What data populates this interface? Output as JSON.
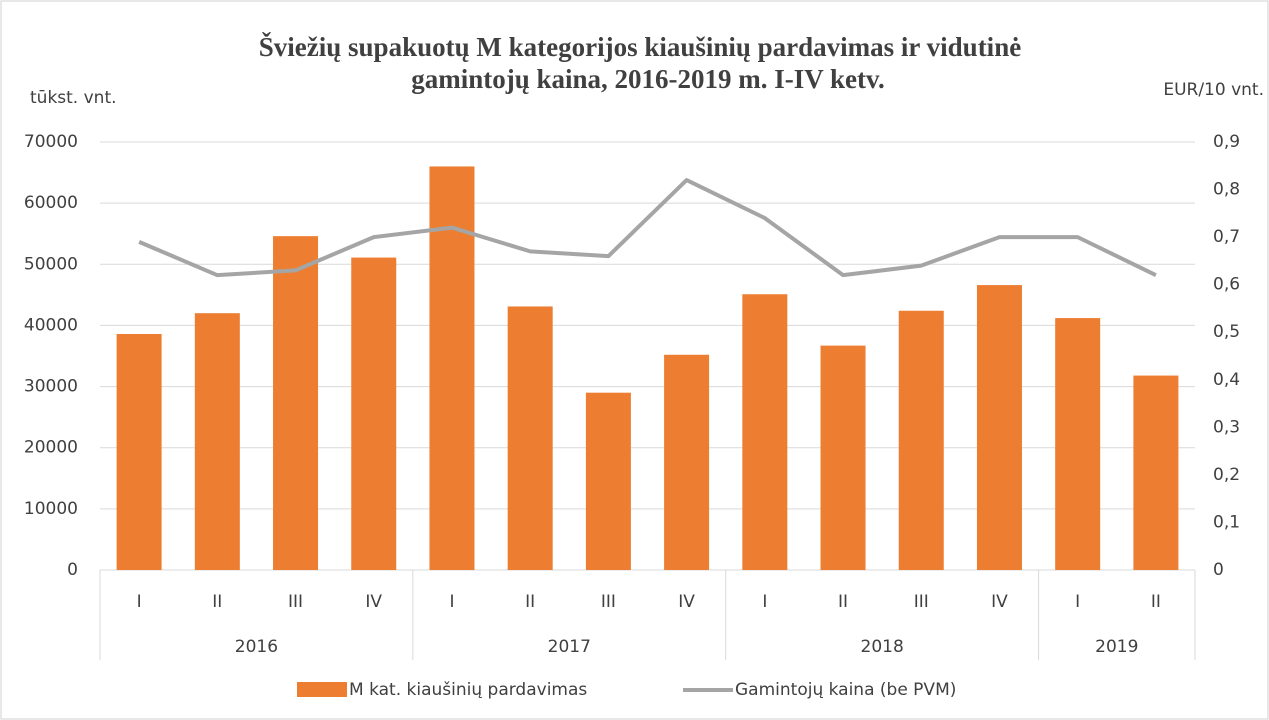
{
  "chart_data": {
    "type": "bar_line",
    "title": [
      "Šviežių supakuotų M kategorijos kiaušinių pardavimas ir vidutinė",
      "gamintojų kaina, 2016-2019 m. I-IV ketv."
    ],
    "y_label": "tūkst. vnt.",
    "y2_label": "EUR/10 vnt.",
    "groups": [
      {
        "name": "2016",
        "categories": [
          "I",
          "II",
          "III",
          "IV"
        ]
      },
      {
        "name": "2017",
        "categories": [
          "I",
          "II",
          "III",
          "IV"
        ]
      },
      {
        "name": "2018",
        "categories": [
          "I",
          "II",
          "III",
          "IV"
        ]
      },
      {
        "name": "2019",
        "categories": [
          "I",
          "II"
        ]
      }
    ],
    "series": [
      {
        "name": "M kat. kiaušinių pardavimas",
        "type": "bar",
        "color": "#ed7d31",
        "values": [
          38600,
          42000,
          54600,
          51100,
          66000,
          43100,
          29000,
          35200,
          45100,
          36700,
          42400,
          46600,
          41200,
          31800
        ]
      },
      {
        "name": "Gamintojų kaina (be PVM)",
        "type": "line",
        "axis": "y2",
        "color": "#a5a5a5",
        "values": [
          0.69,
          0.62,
          0.63,
          0.7,
          0.72,
          0.67,
          0.66,
          0.82,
          0.74,
          0.62,
          0.64,
          0.7,
          0.7,
          0.62
        ]
      }
    ],
    "ylim": [
      0,
      70000
    ],
    "yticks": [
      0,
      10000,
      20000,
      30000,
      40000,
      50000,
      60000,
      70000
    ],
    "y2lim": [
      0,
      0.9
    ],
    "y2ticks": [
      0,
      {
        "value": 0.1,
        "label": "0,1"
      },
      {
        "value": 0.2,
        "label": "0,2"
      },
      {
        "value": 0.3,
        "label": "0,3"
      },
      {
        "value": 0.4,
        "label": "0,4"
      },
      {
        "value": 0.5,
        "label": "0,5"
      },
      {
        "value": 0.6,
        "label": "0,6"
      },
      {
        "value": 0.7,
        "label": "0,7"
      },
      {
        "value": 0.8,
        "label": "0,8"
      },
      {
        "value": 0.9,
        "label": "0,9"
      }
    ],
    "grid": true,
    "legend": "bottom"
  }
}
